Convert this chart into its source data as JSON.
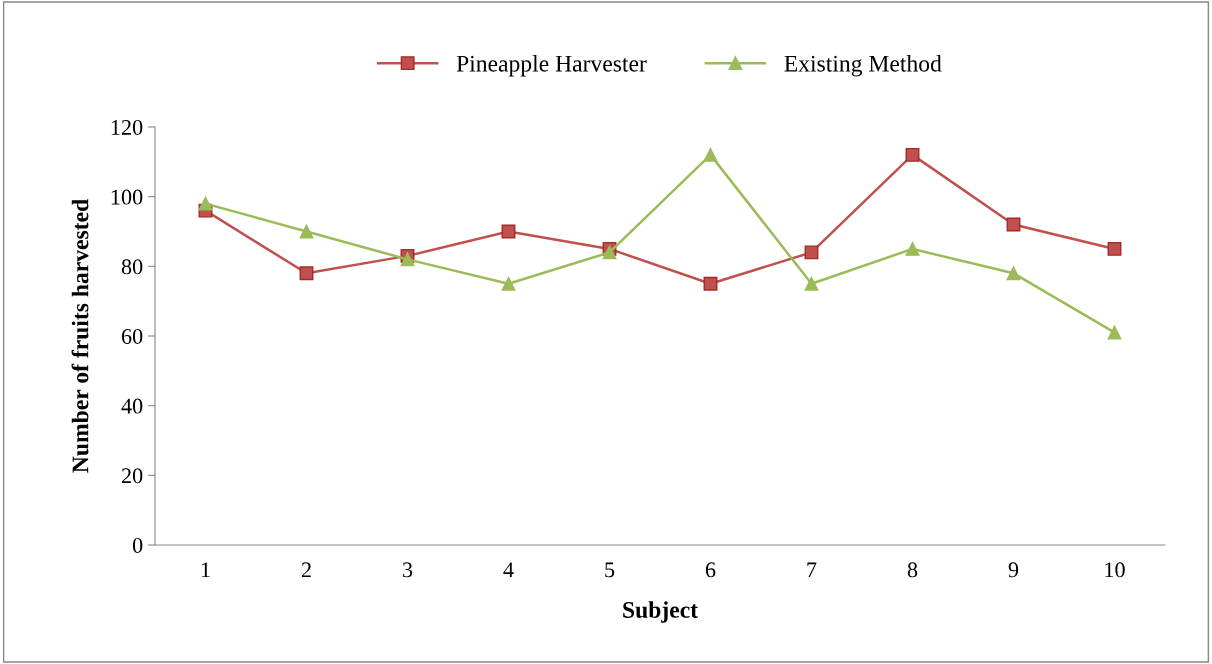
{
  "chart_data": {
    "type": "line",
    "xlabel": "Subject",
    "ylabel": "Number of fruits harvested",
    "categories": [
      "1",
      "2",
      "3",
      "4",
      "5",
      "6",
      "7",
      "8",
      "9",
      "10"
    ],
    "series": [
      {
        "name": "Pineapple Harvester",
        "color": "#c0504d",
        "marker": "square",
        "values": [
          96,
          78,
          83,
          90,
          85,
          75,
          84,
          112,
          92,
          85
        ]
      },
      {
        "name": "Existing Method",
        "color": "#9bbb59",
        "marker": "triangle",
        "values": [
          98,
          90,
          82,
          75,
          84,
          112,
          75,
          85,
          78,
          61
        ]
      }
    ],
    "ylim": [
      0,
      120
    ],
    "yticks": [
      0,
      20,
      40,
      60,
      80,
      100,
      120
    ],
    "grid": false,
    "legend": "top",
    "line_style": "solid"
  }
}
